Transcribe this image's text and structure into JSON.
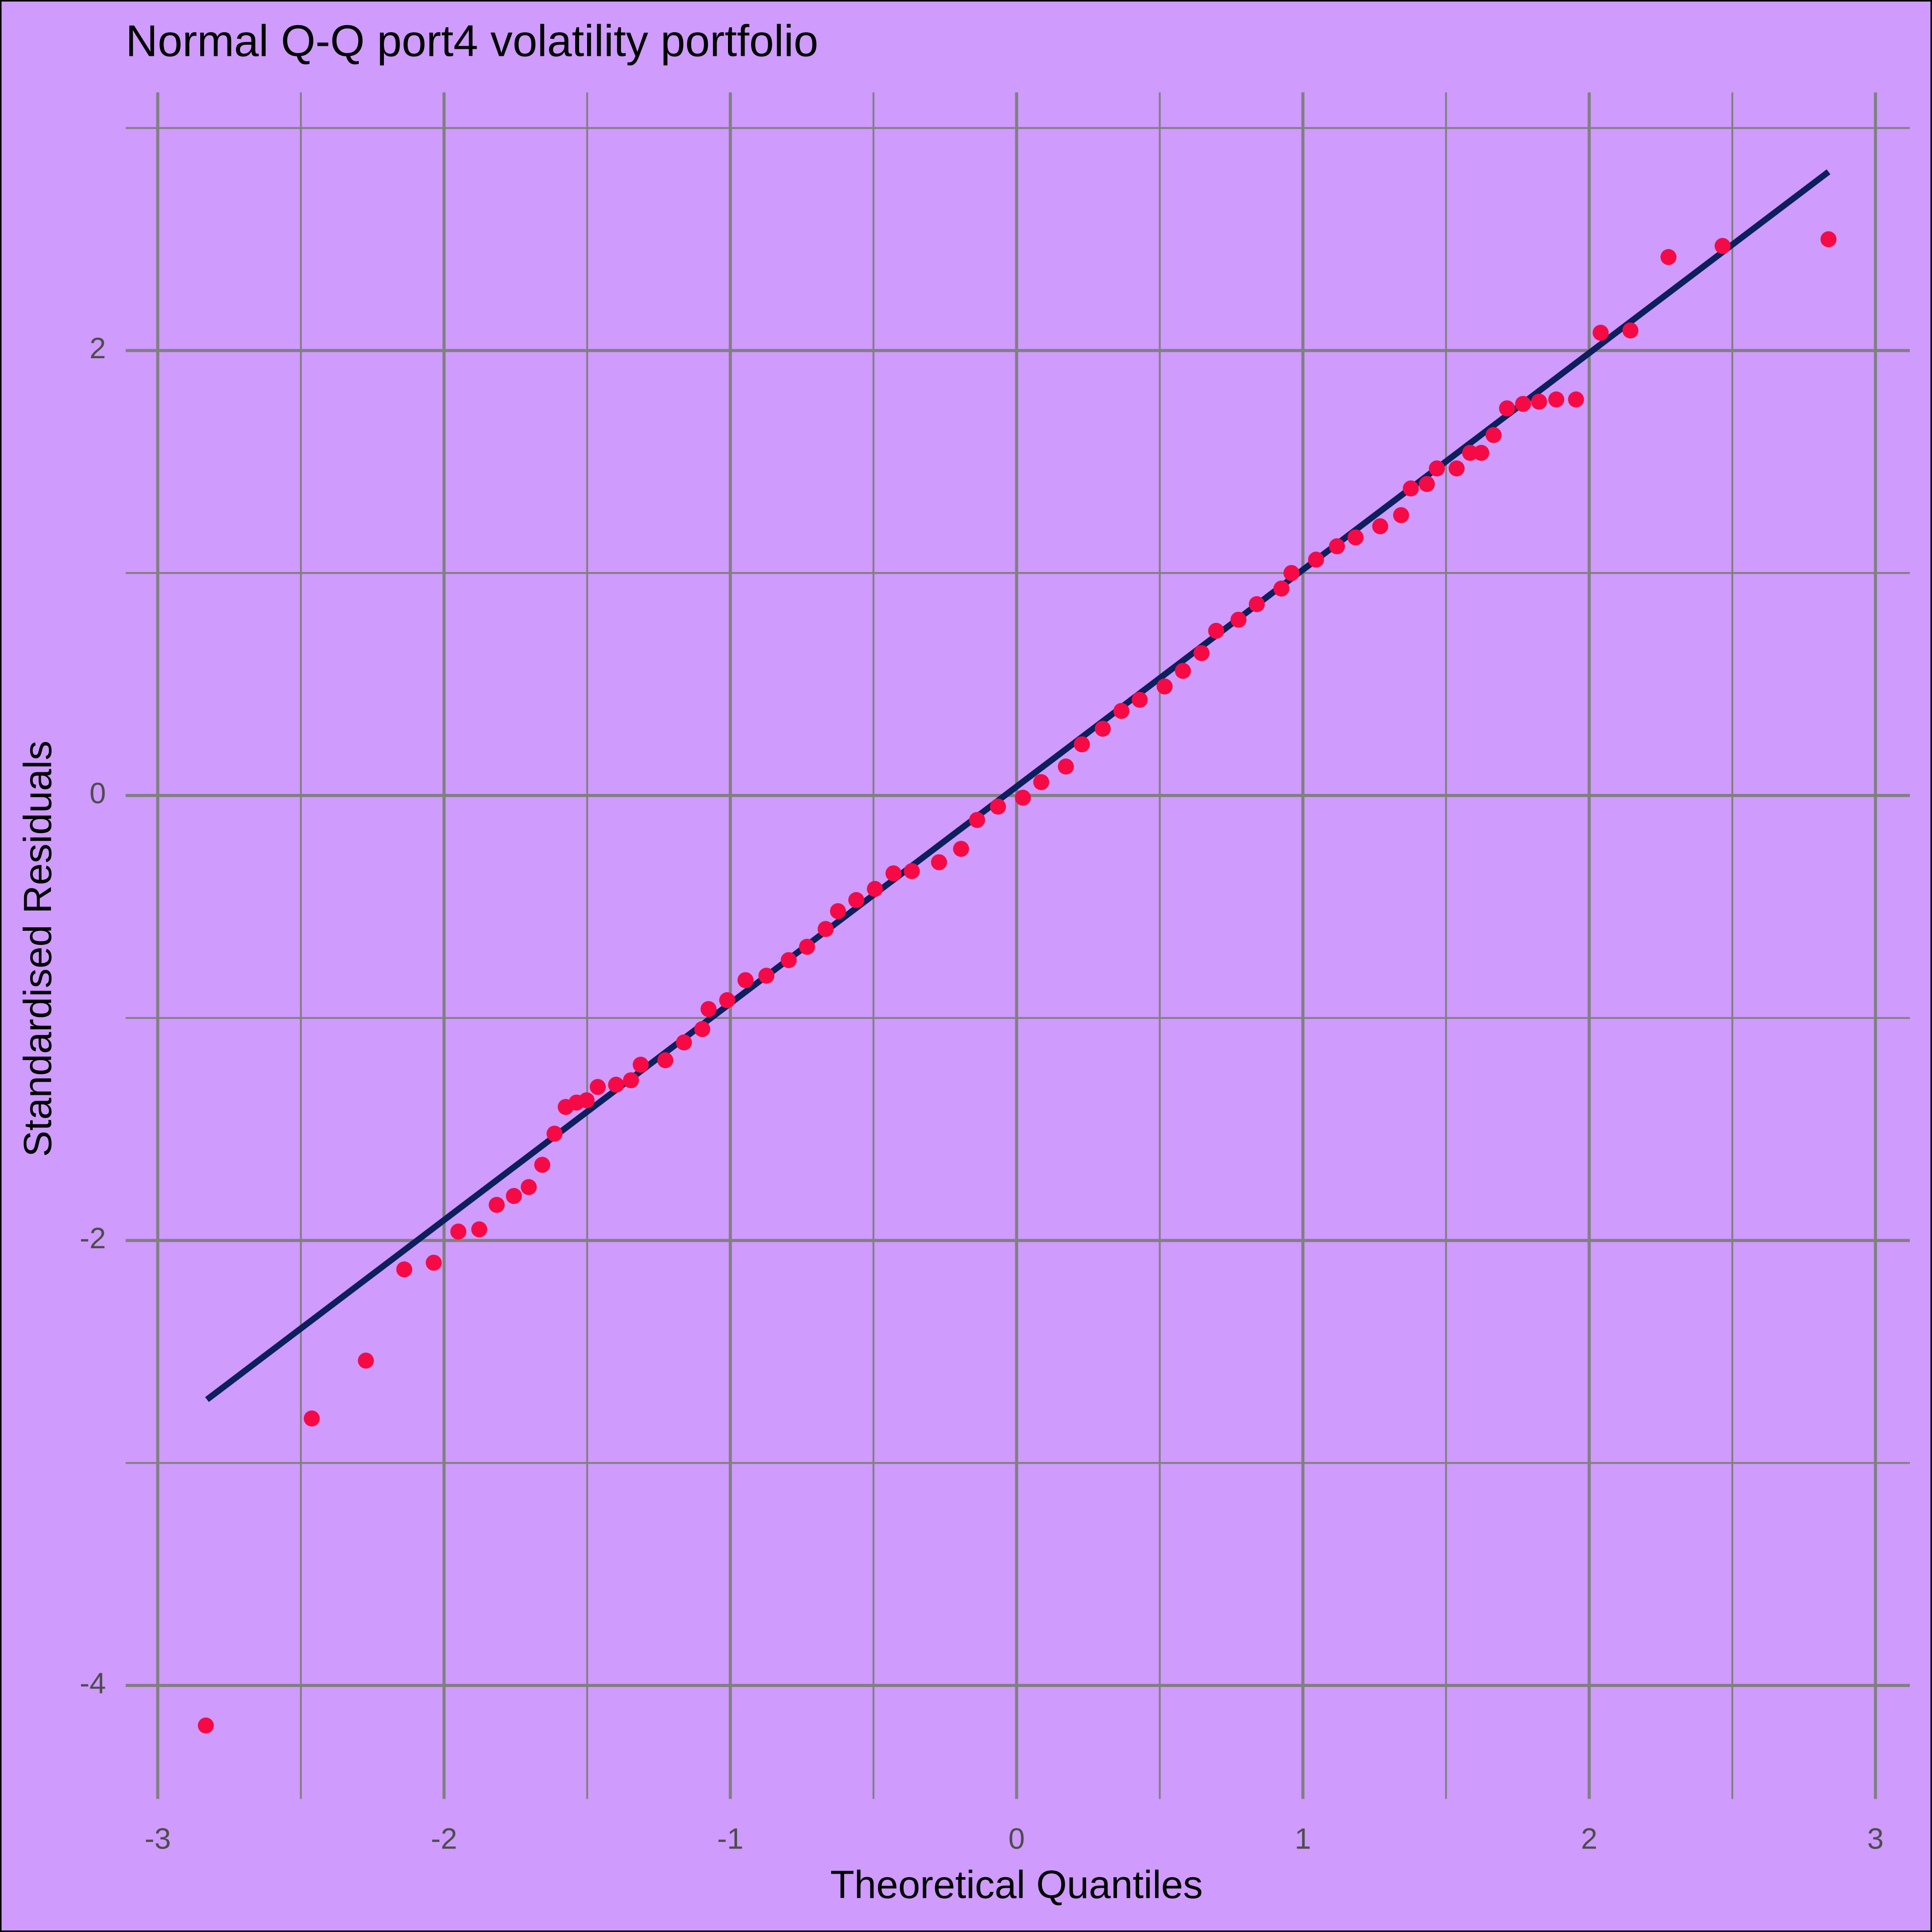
{
  "chart_data": {
    "type": "scatter",
    "title": "Normal Q-Q port4 volatility portfolio",
    "xlabel": "Theoretical Quantiles",
    "ylabel": "Standardised Residuals",
    "color": "#f50a45",
    "x": [
      -2.832,
      -2.462,
      -2.273,
      -2.139,
      -2.036,
      -1.95,
      -1.877,
      -1.816,
      -1.756,
      -1.704,
      -1.657,
      -1.614,
      -1.575,
      -1.537,
      -1.502,
      -1.463,
      -1.399,
      -1.347,
      -1.313,
      -1.227,
      -1.162,
      -1.098,
      -1.076,
      -1.011,
      -0.947,
      -0.874,
      -0.796,
      -0.732,
      -0.667,
      -0.624,
      -0.56,
      -0.495,
      -0.43,
      -0.366,
      -0.271,
      -0.194,
      -0.138,
      -0.065,
      0.022,
      0.086,
      0.172,
      0.228,
      0.301,
      0.366,
      0.43,
      0.517,
      0.581,
      0.646,
      0.697,
      0.775,
      0.839,
      0.925,
      0.96,
      1.046,
      1.119,
      1.184,
      1.27,
      1.343,
      1.377,
      1.433,
      1.468,
      1.537,
      1.584,
      1.623,
      1.666,
      1.713,
      1.769,
      1.825,
      1.885,
      1.954,
      2.04,
      2.144,
      2.277,
      2.466,
      2.836
    ],
    "values": [
      -4.18,
      -2.8,
      -2.54,
      -2.13,
      -2.1,
      -1.96,
      -1.95,
      -1.84,
      -1.8,
      -1.76,
      -1.66,
      -1.52,
      -1.4,
      -1.38,
      -1.37,
      -1.31,
      -1.3,
      -1.28,
      -1.21,
      -1.19,
      -1.11,
      -1.05,
      -0.96,
      -0.92,
      -0.83,
      -0.81,
      -0.74,
      -0.68,
      -0.6,
      -0.52,
      -0.47,
      -0.42,
      -0.35,
      -0.34,
      -0.3,
      -0.24,
      -0.11,
      -0.05,
      -0.01,
      0.06,
      0.13,
      0.23,
      0.3,
      0.38,
      0.43,
      0.49,
      0.56,
      0.64,
      0.74,
      0.79,
      0.86,
      0.93,
      1.0,
      1.06,
      1.12,
      1.16,
      1.21,
      1.26,
      1.38,
      1.4,
      1.47,
      1.47,
      1.54,
      1.54,
      1.62,
      1.74,
      1.76,
      1.77,
      1.78,
      1.78,
      2.08,
      2.09,
      2.42,
      2.47,
      2.5
    ],
    "reference_line": {
      "x": [
        -2.828,
        2.836
      ],
      "y": [
        -2.715,
        2.803
      ],
      "color": "#0d1f5c"
    },
    "xlim": [
      -3.112,
      3.12
    ],
    "ylim": [
      -4.51,
      3.16
    ],
    "xticks": [
      -3,
      -2,
      -1,
      0,
      1,
      2,
      3
    ],
    "yticks": [
      -4,
      -2,
      0,
      2
    ],
    "xminor": [
      -2.5,
      -1.5,
      -0.5,
      0.5,
      1.5,
      2.5
    ],
    "yminor": [
      -3,
      -1,
      1,
      3
    ],
    "grid": true,
    "grid_color": "#808080",
    "background": "#cf9bfc"
  }
}
